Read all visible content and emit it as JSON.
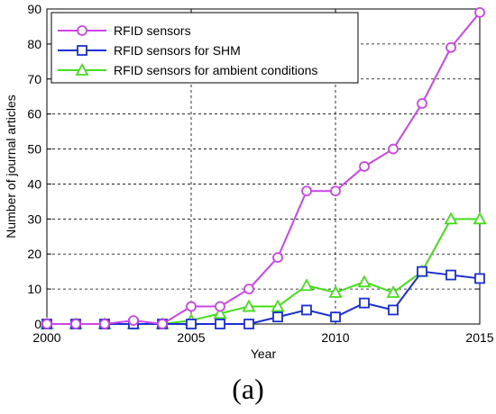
{
  "caption": "(a)",
  "chart_data": {
    "type": "line",
    "title": "",
    "xlabel": "Year",
    "ylabel": "Number of journal articles",
    "xlim": [
      2000,
      2015
    ],
    "ylim": [
      0,
      90
    ],
    "xticks": [
      2000,
      2005,
      2010,
      2015
    ],
    "yticks": [
      0,
      10,
      20,
      30,
      40,
      50,
      60,
      70,
      80,
      90
    ],
    "grid": true,
    "legend_position": "top-left",
    "x": [
      2000,
      2001,
      2002,
      2003,
      2004,
      2005,
      2006,
      2007,
      2008,
      2009,
      2010,
      2011,
      2012,
      2013,
      2014,
      2015
    ],
    "series": [
      {
        "name": "RFID sensors",
        "color": "#cc44e8",
        "marker": "circle",
        "values": [
          0,
          0,
          0,
          1,
          0,
          5,
          5,
          10,
          19,
          38,
          38,
          45,
          50,
          63,
          79,
          89
        ]
      },
      {
        "name": "RFID sensors for SHM",
        "color": "#1a2fd0",
        "marker": "square",
        "values": [
          0,
          0,
          0,
          0,
          0,
          0,
          0,
          0,
          2,
          4,
          2,
          6,
          4,
          15,
          14,
          13
        ]
      },
      {
        "name": "RFID sensors for ambient conditions",
        "color": "#44dd1a",
        "marker": "triangle",
        "values": [
          0,
          0,
          0,
          0,
          0,
          1,
          3,
          5,
          5,
          11,
          9,
          12,
          9,
          15,
          30,
          30
        ]
      }
    ]
  }
}
